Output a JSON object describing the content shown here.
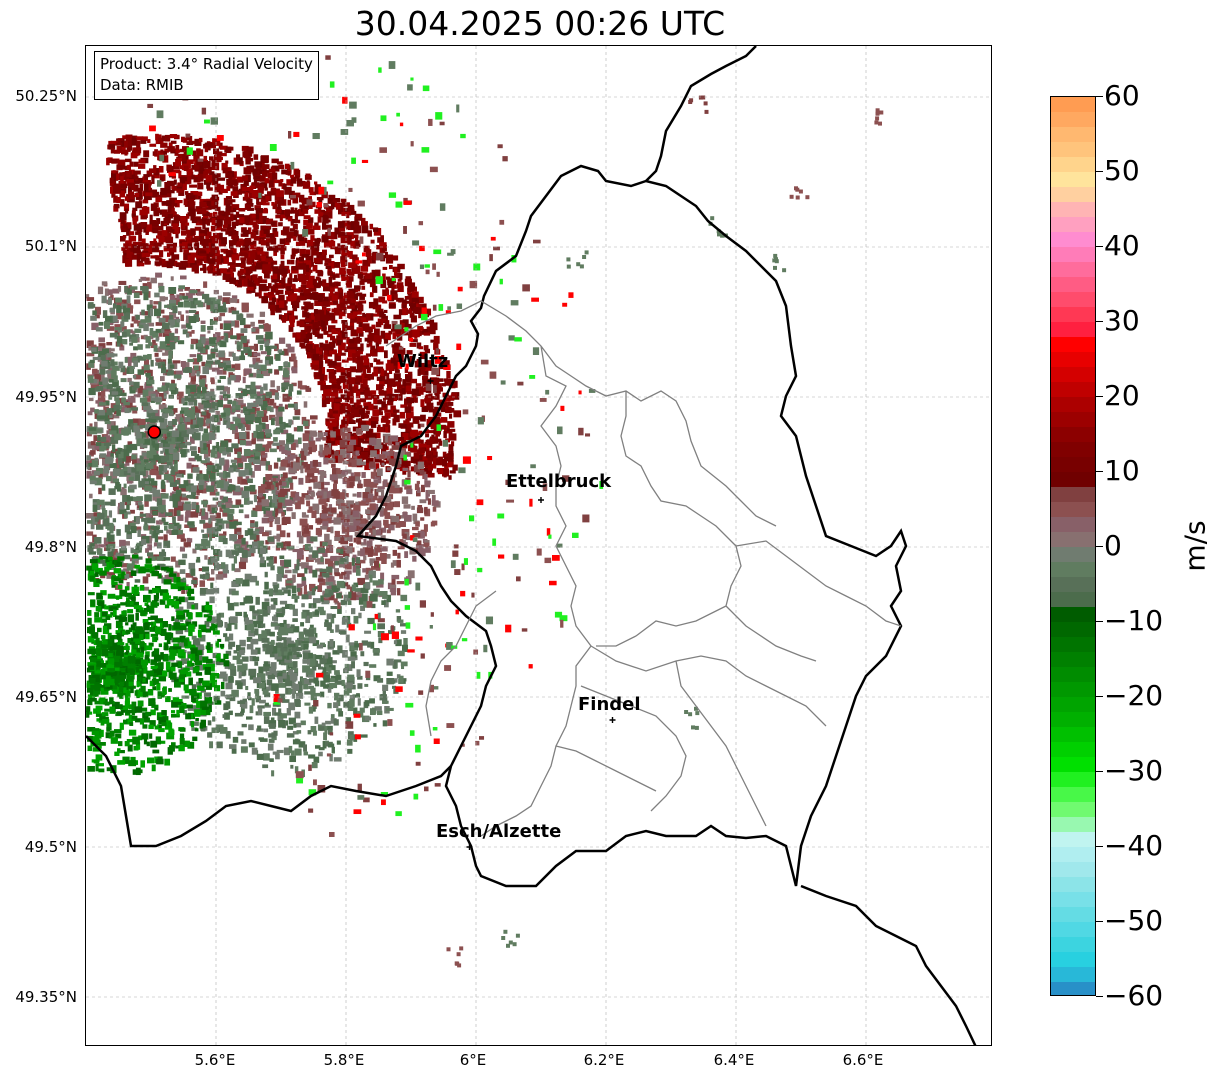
{
  "title": "30.04.2025 00:26 UTC",
  "info": {
    "product": "Product: 3.4° Radial Velocity",
    "data": "Data: RMIB"
  },
  "lat_labels": [
    "50.25°N",
    "50.1°N",
    "49.95°N",
    "49.8°N",
    "49.65°N",
    "49.5°N",
    "49.35°N"
  ],
  "lon_labels": [
    "5.6°E",
    "5.8°E",
    "6°E",
    "6.2°E",
    "6.4°E",
    "6.6°E"
  ],
  "cities": [
    {
      "name": "Wiltz",
      "lon": 5.93,
      "lat": 49.966
    },
    {
      "name": "Ettelbruck",
      "lon": 6.1,
      "lat": 49.847
    },
    {
      "name": "Findel",
      "lon": 6.21,
      "lat": 49.627
    },
    {
      "name": "Esch/Alzette",
      "lon": 5.99,
      "lat": 49.5
    }
  ],
  "radar_site": {
    "lon": 5.505,
    "lat": 49.915,
    "color": "#ff0000"
  },
  "colorbar": {
    "unit": "m/s",
    "min": -60,
    "max": 60,
    "ticks": [
      "60",
      "50",
      "40",
      "30",
      "20",
      "10",
      "0",
      "−10",
      "−20",
      "−30",
      "−40",
      "−50",
      "−60"
    ],
    "colors": [
      "#ff9c52",
      "#ffa860",
      "#ffb870",
      "#ffc47c",
      "#ffd48c",
      "#ffe49c",
      "#ffd0a0",
      "#ffb4b4",
      "#ffa0c0",
      "#ff8cd0",
      "#ff7cb8",
      "#ff6c9c",
      "#ff5c84",
      "#ff4c6c",
      "#ff3854",
      "#ff2040",
      "#ff0000",
      "#e80000",
      "#d40000",
      "#c00000",
      "#ac0000",
      "#9c0000",
      "#8c0000",
      "#800000",
      "#780000",
      "#700000",
      "#804040",
      "#8c5050",
      "#886068",
      "#887070",
      "#707c70",
      "#607c60",
      "#587058",
      "#4c6c4c",
      "#005c00",
      "#006800",
      "#007400",
      "#008000",
      "#008c00",
      "#009800",
      "#00a400",
      "#00b000",
      "#00c000",
      "#00d000",
      "#00e000",
      "#20f020",
      "#48f848",
      "#70fa70",
      "#98f8b0",
      "#c0f4f0",
      "#b0eef0",
      "#a0e8ec",
      "#8ce4e8",
      "#78e0e8",
      "#64dce4",
      "#50d8e4",
      "#3cd4e0",
      "#28d0e0",
      "#28b8d8",
      "#2890c8"
    ]
  }
}
